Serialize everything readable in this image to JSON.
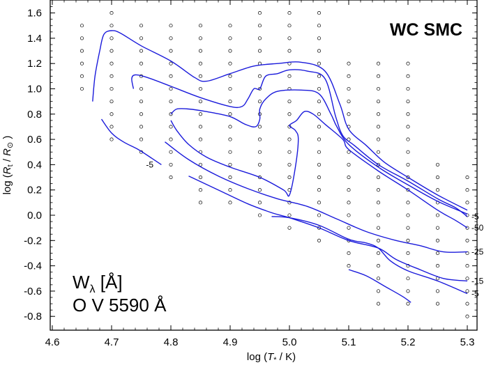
{
  "chart_data": {
    "type": "contour",
    "title": "WC SMC",
    "xlabel": {
      "pre": "log (",
      "var": "T",
      "sub": "*",
      "post": " / K)"
    },
    "ylabel": {
      "pre": "log (",
      "var": "R",
      "sub": "t",
      "mid": " / ",
      "var2": "R",
      "sub2": "⊙",
      "post": " )"
    },
    "xlim": [
      4.6,
      5.33
    ],
    "ylim": [
      -0.87,
      1.7
    ],
    "xticks": [
      4.6,
      4.7,
      4.8,
      4.9,
      5.0,
      5.1,
      5.2,
      5.3
    ],
    "xtick_labels": [
      "4.6",
      "4.7",
      "4.8",
      "4.9",
      "5.0",
      "5.1",
      "5.2",
      "5.3"
    ],
    "yticks": [
      -0.8,
      -0.6,
      -0.4,
      -0.2,
      0.0,
      0.2,
      0.4,
      0.6,
      0.8,
      1.0,
      1.2,
      1.4,
      1.6
    ],
    "ytick_labels": [
      "-0.8",
      "-0.6",
      "-0.4",
      "-0.2",
      "0.0",
      "0.2",
      "0.4",
      "0.6",
      "0.8",
      "1.0",
      "1.2",
      "1.4",
      "1.6"
    ],
    "annotation": {
      "line1_sym": "W",
      "line1_sub": "λ",
      "line1_unit": " [Å]",
      "line2": "O V 5590 Å"
    },
    "grid_models": [
      {
        "x": 4.65,
        "y": [
          1.0,
          1.1,
          1.2,
          1.3,
          1.4,
          1.5
        ]
      },
      {
        "x": 4.7,
        "y": [
          0.6,
          0.7,
          0.8,
          0.9,
          1.0,
          1.1,
          1.2,
          1.3,
          1.4,
          1.5,
          1.6
        ]
      },
      {
        "x": 4.75,
        "y": [
          0.5,
          0.6,
          0.7,
          0.8,
          0.9,
          1.0,
          1.1,
          1.2,
          1.3,
          1.4,
          1.5
        ]
      },
      {
        "x": 4.8,
        "y": [
          0.3,
          0.4,
          0.5,
          0.6,
          0.7,
          0.8,
          0.9,
          1.0,
          1.1,
          1.2,
          1.3,
          1.4,
          1.5
        ]
      },
      {
        "x": 4.85,
        "y": [
          0.1,
          0.2,
          0.3,
          0.4,
          0.5,
          0.6,
          0.7,
          0.8,
          0.9,
          1.0,
          1.1,
          1.2,
          1.3,
          1.4,
          1.5
        ]
      },
      {
        "x": 4.9,
        "y": [
          0.1,
          0.2,
          0.3,
          0.4,
          0.5,
          0.6,
          0.7,
          0.8,
          0.9,
          1.0,
          1.1,
          1.2,
          1.3,
          1.4,
          1.5
        ]
      },
      {
        "x": 4.95,
        "y": [
          0.0,
          0.1,
          0.2,
          0.3,
          0.4,
          0.5,
          0.6,
          0.7,
          0.8,
          0.9,
          1.0,
          1.1,
          1.2,
          1.3,
          1.4,
          1.5,
          1.6
        ]
      },
      {
        "x": 5.0,
        "y": [
          -0.1,
          0.0,
          0.1,
          0.2,
          0.3,
          0.4,
          0.5,
          0.6,
          0.7,
          0.8,
          0.9,
          1.0,
          1.1,
          1.2,
          1.3,
          1.4,
          1.5,
          1.6
        ]
      },
      {
        "x": 5.05,
        "y": [
          -0.2,
          -0.1,
          0.0,
          0.1,
          0.2,
          0.3,
          0.4,
          0.5,
          0.6,
          0.7,
          0.8,
          0.9,
          1.0,
          1.1,
          1.2,
          1.3,
          1.4,
          1.5,
          1.6
        ]
      },
      {
        "x": 5.1,
        "y": [
          -0.4,
          -0.3,
          -0.2,
          -0.1,
          0.0,
          0.1,
          0.2,
          0.3,
          0.4,
          0.5,
          0.6,
          0.7,
          0.8,
          0.9,
          1.0,
          1.1,
          1.2
        ]
      },
      {
        "x": 5.15,
        "y": [
          -0.7,
          -0.6,
          -0.5,
          -0.4,
          -0.3,
          -0.2,
          -0.1,
          0.0,
          0.1,
          0.2,
          0.3,
          0.4,
          0.5,
          0.6,
          0.7,
          0.8,
          0.9,
          1.0,
          1.1,
          1.2
        ]
      },
      {
        "x": 5.2,
        "y": [
          -0.7,
          -0.6,
          -0.5,
          -0.4,
          -0.3,
          -0.2,
          -0.1,
          0.0,
          0.1,
          0.2,
          0.3,
          0.4,
          0.5,
          0.6,
          0.7,
          0.8,
          0.9,
          1.0,
          1.1,
          1.2
        ]
      },
      {
        "x": 5.25,
        "y": [
          -0.7,
          -0.6,
          -0.5,
          -0.4,
          -0.3,
          -0.2,
          -0.1,
          0.0,
          0.1,
          0.2,
          0.3,
          0.4
        ]
      },
      {
        "x": 5.3,
        "y": [
          -0.8,
          -0.7,
          -0.6,
          -0.5,
          -0.4,
          -0.3,
          -0.2,
          -0.1,
          0.0,
          0.1,
          0.2,
          0.3
        ]
      }
    ],
    "contours": [
      {
        "label": "-5",
        "points": [
          [
            4.683,
            0.76
          ],
          [
            4.7,
            0.65
          ],
          [
            4.72,
            0.58
          ],
          [
            4.745,
            0.52
          ],
          [
            4.768,
            0.45
          ],
          [
            4.784,
            0.4
          ]
        ]
      },
      {
        "label": "",
        "points": [
          [
            4.668,
            0.9
          ],
          [
            4.672,
            1.1
          ],
          [
            4.68,
            1.3
          ],
          [
            4.687,
            1.43
          ],
          [
            4.7,
            1.46
          ],
          [
            4.715,
            1.44
          ],
          [
            4.75,
            1.34
          ],
          [
            4.8,
            1.22
          ],
          [
            4.84,
            1.09
          ],
          [
            4.86,
            1.06
          ],
          [
            4.9,
            1.12
          ],
          [
            4.94,
            1.18
          ],
          [
            4.98,
            1.2
          ],
          [
            5.02,
            1.21
          ],
          [
            5.06,
            1.14
          ],
          [
            5.085,
            0.88
          ],
          [
            5.1,
            0.68
          ],
          [
            5.13,
            0.55
          ],
          [
            5.16,
            0.42
          ],
          [
            5.2,
            0.3
          ],
          [
            5.25,
            0.16
          ],
          [
            5.3,
            0.04
          ]
        ]
      },
      {
        "label": "-5",
        "points": [
          [
            4.737,
            1.0
          ],
          [
            4.734,
            1.08
          ],
          [
            4.74,
            1.11
          ],
          [
            4.76,
            1.09
          ],
          [
            4.8,
            1.02
          ],
          [
            4.85,
            0.93
          ],
          [
            4.9,
            0.86
          ],
          [
            4.92,
            0.86
          ],
          [
            4.93,
            0.92
          ],
          [
            4.94,
            1.0
          ],
          [
            4.95,
            1.0
          ],
          [
            4.96,
            1.1
          ],
          [
            4.98,
            1.12
          ],
          [
            5.0,
            1.15
          ],
          [
            5.03,
            1.14
          ],
          [
            5.06,
            1.08
          ],
          [
            5.078,
            0.78
          ],
          [
            5.09,
            0.63
          ],
          [
            5.11,
            0.55
          ],
          [
            5.15,
            0.4
          ],
          [
            5.2,
            0.27
          ],
          [
            5.25,
            0.13
          ],
          [
            5.28,
            0.06
          ],
          [
            5.3,
            -0.01
          ]
        ]
      },
      {
        "label": "",
        "points": [
          [
            4.8,
            0.8
          ],
          [
            4.81,
            0.84
          ],
          [
            4.83,
            0.84
          ],
          [
            4.86,
            0.82
          ],
          [
            4.9,
            0.78
          ],
          [
            4.925,
            0.72
          ],
          [
            4.943,
            0.7
          ],
          [
            4.95,
            0.76
          ],
          [
            4.95,
            0.84
          ],
          [
            4.96,
            0.92
          ],
          [
            4.98,
            0.98
          ],
          [
            5.02,
            0.99
          ],
          [
            5.05,
            0.96
          ],
          [
            5.07,
            0.8
          ],
          [
            5.08,
            0.7
          ],
          [
            5.1,
            0.56
          ],
          [
            5.15,
            0.38
          ],
          [
            5.2,
            0.24
          ],
          [
            5.25,
            0.11
          ],
          [
            5.3,
            0.01
          ]
        ]
      },
      {
        "label": "-50",
        "points": [
          [
            4.8,
            0.75
          ],
          [
            4.81,
            0.67
          ],
          [
            4.83,
            0.56
          ],
          [
            4.86,
            0.46
          ],
          [
            4.9,
            0.38
          ],
          [
            4.95,
            0.3
          ],
          [
            4.99,
            0.2
          ],
          [
            5.0,
            0.16
          ],
          [
            5.01,
            0.38
          ],
          [
            5.015,
            0.6
          ],
          [
            5.01,
            0.67
          ],
          [
            5.0,
            0.71
          ],
          [
            5.012,
            0.75
          ],
          [
            5.025,
            0.82
          ],
          [
            5.04,
            0.8
          ],
          [
            5.06,
            0.72
          ],
          [
            5.09,
            0.6
          ],
          [
            5.1,
            0.52
          ],
          [
            5.15,
            0.35
          ],
          [
            5.2,
            0.2
          ],
          [
            5.25,
            0.04
          ],
          [
            5.28,
            -0.04
          ],
          [
            5.3,
            -0.1
          ]
        ]
      },
      {
        "label": "-25",
        "points": [
          [
            4.79,
            0.58
          ],
          [
            4.83,
            0.44
          ],
          [
            4.88,
            0.31
          ],
          [
            4.93,
            0.21
          ],
          [
            4.98,
            0.13
          ],
          [
            5.03,
            0.07
          ],
          [
            5.08,
            -0.03
          ],
          [
            5.13,
            -0.13
          ],
          [
            5.18,
            -0.2
          ],
          [
            5.22,
            -0.24
          ],
          [
            5.26,
            -0.29
          ],
          [
            5.3,
            -0.29
          ]
        ]
      },
      {
        "label": "-15",
        "points": [
          [
            4.83,
            0.31
          ],
          [
            4.88,
            0.2
          ],
          [
            4.93,
            0.09
          ],
          [
            4.97,
            0.02
          ],
          [
            5.0,
            -0.02
          ],
          [
            5.05,
            -0.1
          ],
          [
            5.1,
            -0.2
          ],
          [
            5.15,
            -0.26
          ],
          [
            5.18,
            -0.35
          ],
          [
            5.22,
            -0.43
          ],
          [
            5.26,
            -0.5
          ],
          [
            5.3,
            -0.52
          ]
        ]
      },
      {
        "label": "-5",
        "points": [
          [
            4.97,
            -0.01
          ],
          [
            5.0,
            -0.02
          ],
          [
            5.05,
            -0.08
          ],
          [
            5.1,
            -0.19
          ],
          [
            5.13,
            -0.22
          ],
          [
            5.15,
            -0.26
          ],
          [
            5.17,
            -0.36
          ],
          [
            5.2,
            -0.44
          ],
          [
            5.25,
            -0.52
          ],
          [
            5.3,
            -0.62
          ]
        ]
      },
      {
        "label": "",
        "points": [
          [
            5.1,
            -0.43
          ],
          [
            5.13,
            -0.48
          ],
          [
            5.16,
            -0.56
          ],
          [
            5.19,
            -0.64
          ],
          [
            5.205,
            -0.69
          ]
        ]
      }
    ]
  }
}
